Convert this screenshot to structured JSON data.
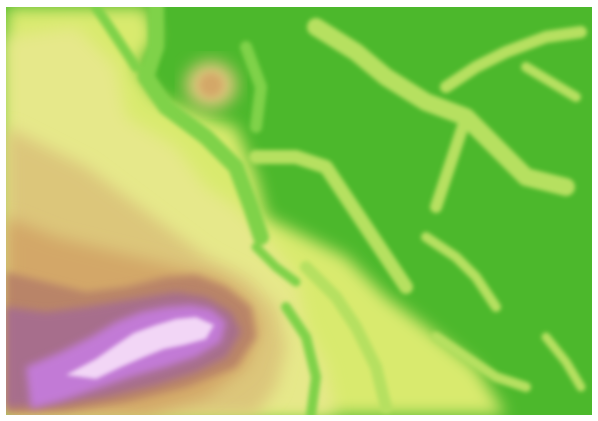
{
  "map": {
    "kind": "shaded elevation (hypsometric tint) raster",
    "labels": [],
    "colors": {
      "lowland_green": "#4cb82c",
      "mid_green": "#7fd24a",
      "light_green": "#b6e060",
      "yellow_green": "#d9ea6e",
      "pale_yellow": "#e6e88a",
      "tan": "#dcc67a",
      "orange_tan": "#d3a768",
      "brown": "#b98468",
      "mauve": "#a76e8c",
      "purple": "#c27ad6",
      "pink_white": "#f2d6f6"
    }
  }
}
